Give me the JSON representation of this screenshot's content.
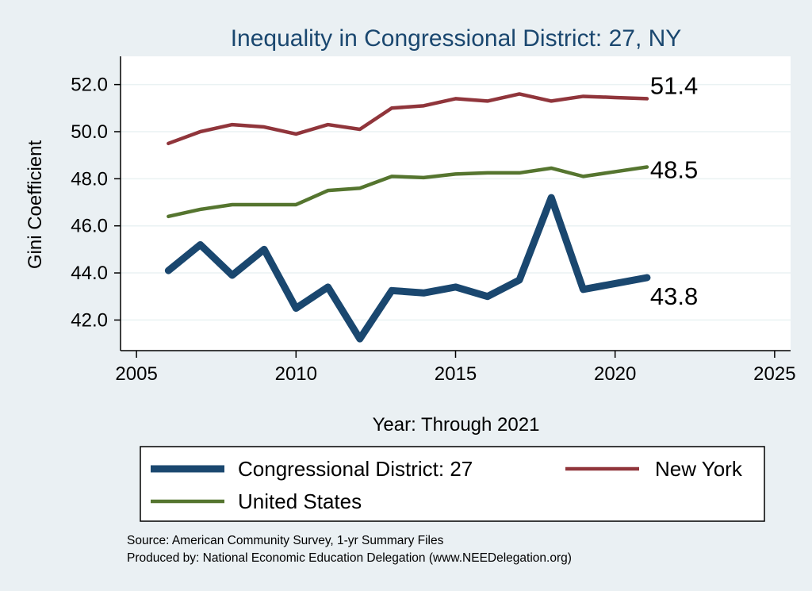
{
  "chart_data": {
    "type": "line",
    "title": "Inequality in Congressional District:  27, NY",
    "xlabel": "Year: Through 2021",
    "ylabel": "Gini Coefficient",
    "xlim": [
      2004.5,
      2025.5
    ],
    "ylim": [
      40.7,
      53.2
    ],
    "xticks": [
      2005,
      2010,
      2015,
      2020,
      2025
    ],
    "yticks": [
      42.0,
      44.0,
      46.0,
      48.0,
      50.0,
      52.0
    ],
    "grid": true,
    "legend_position": "bottom",
    "x": [
      2006,
      2007,
      2008,
      2009,
      2010,
      2011,
      2012,
      2013,
      2014,
      2015,
      2016,
      2017,
      2018,
      2019,
      2020,
      2021
    ],
    "series": [
      {
        "name": "Congressional District:  27",
        "color": "#1a476f",
        "values": [
          44.1,
          45.2,
          43.9,
          45.0,
          42.5,
          43.4,
          41.2,
          43.25,
          43.15,
          43.4,
          43.0,
          43.7,
          47.2,
          43.3,
          43.55,
          43.8
        ],
        "end_label": "43.8"
      },
      {
        "name": "New York",
        "color": "#90353b",
        "values": [
          49.5,
          50.0,
          50.3,
          50.2,
          49.9,
          50.3,
          50.1,
          51.0,
          51.1,
          51.4,
          51.3,
          51.6,
          51.3,
          51.5,
          51.45,
          51.4
        ],
        "end_label": "51.4"
      },
      {
        "name": "United States",
        "color": "#55752f",
        "values": [
          46.4,
          46.7,
          46.9,
          46.9,
          46.9,
          47.5,
          47.6,
          48.1,
          48.05,
          48.2,
          48.25,
          48.25,
          48.45,
          48.1,
          48.3,
          48.5
        ],
        "end_label": "48.5"
      }
    ]
  },
  "source": {
    "line1": "Source: American Community Survey, 1-yr Summary Files",
    "line2": "Produced by: National Economic Education Delegation (www.NEEDelegation.org)"
  }
}
